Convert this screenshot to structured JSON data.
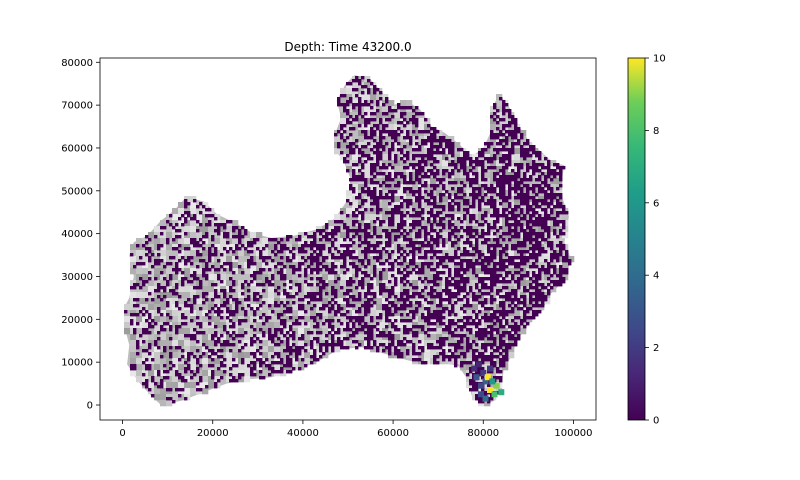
{
  "chart_data": {
    "type": "heatmap",
    "title": "Depth: Time 43200.0",
    "xlabel": "",
    "ylabel": "",
    "xlim": [
      -5000,
      105000
    ],
    "ylim": [
      -3500,
      81000
    ],
    "x_ticks": [
      0,
      20000,
      40000,
      60000,
      80000,
      100000
    ],
    "x_tick_labels": [
      "0",
      "20000",
      "40000",
      "60000",
      "80000",
      "100000"
    ],
    "y_ticks": [
      0,
      10000,
      20000,
      30000,
      40000,
      50000,
      60000,
      70000,
      80000
    ],
    "y_tick_labels": [
      "0",
      "10000",
      "20000",
      "30000",
      "40000",
      "50000",
      "60000",
      "70000",
      "80000"
    ],
    "colorbar": {
      "colormap": "viridis",
      "vmin": 0,
      "vmax": 10,
      "ticks": [
        0,
        2,
        4,
        6,
        8,
        10
      ],
      "tick_labels": [
        "0",
        "2",
        "4",
        "6",
        "8",
        "10"
      ]
    },
    "background": "grayscale elevation",
    "domain_outline": [
      [
        500,
        23000
      ],
      [
        1500,
        25000
      ],
      [
        2500,
        30000
      ],
      [
        1500,
        35000
      ],
      [
        2500,
        38000
      ],
      [
        5500,
        39500
      ],
      [
        8500,
        43000
      ],
      [
        11500,
        45500
      ],
      [
        14000,
        48500
      ],
      [
        18000,
        47500
      ],
      [
        21000,
        44500
      ],
      [
        25000,
        42500
      ],
      [
        29000,
        40000
      ],
      [
        33000,
        39000
      ],
      [
        38000,
        39500
      ],
      [
        43000,
        41000
      ],
      [
        47000,
        43500
      ],
      [
        50000,
        48000
      ],
      [
        50500,
        53000
      ],
      [
        49000,
        57000
      ],
      [
        47500,
        59000
      ],
      [
        47000,
        63000
      ],
      [
        48500,
        67000
      ],
      [
        47500,
        71000
      ],
      [
        49500,
        75000
      ],
      [
        51500,
        77000
      ],
      [
        55000,
        76000
      ],
      [
        57500,
        73000
      ],
      [
        60000,
        70000
      ],
      [
        63000,
        71000
      ],
      [
        66000,
        69000
      ],
      [
        68500,
        65000
      ],
      [
        71500,
        63500
      ],
      [
        74500,
        61000
      ],
      [
        77500,
        58000
      ],
      [
        80000,
        60000
      ],
      [
        82000,
        64500
      ],
      [
        81500,
        68500
      ],
      [
        83500,
        72500
      ],
      [
        85500,
        70000
      ],
      [
        88000,
        65000
      ],
      [
        90500,
        61000
      ],
      [
        93000,
        59000
      ],
      [
        95500,
        56500
      ],
      [
        98000,
        56000
      ],
      [
        97000,
        50000
      ],
      [
        99000,
        44000
      ],
      [
        98000,
        38000
      ],
      [
        99500,
        34000
      ],
      [
        98000,
        29000
      ],
      [
        95000,
        26000
      ],
      [
        93000,
        22000
      ],
      [
        90000,
        19000
      ],
      [
        87500,
        15000
      ],
      [
        86000,
        11000
      ],
      [
        84500,
        8000
      ],
      [
        84000,
        4000
      ],
      [
        82500,
        1000
      ],
      [
        80000,
        0
      ],
      [
        77500,
        2000
      ],
      [
        76500,
        6000
      ],
      [
        74500,
        9000
      ],
      [
        71000,
        10000
      ],
      [
        67000,
        9500
      ],
      [
        63000,
        10500
      ],
      [
        58000,
        12000
      ],
      [
        53000,
        13500
      ],
      [
        48000,
        13000
      ],
      [
        43000,
        10000
      ],
      [
        38000,
        8000
      ],
      [
        33000,
        6500
      ],
      [
        28000,
        6000
      ],
      [
        23000,
        5000
      ],
      [
        18000,
        3000
      ],
      [
        13000,
        1000
      ],
      [
        8500,
        0
      ],
      [
        6000,
        2500
      ],
      [
        3500,
        5500
      ],
      [
        1000,
        9500
      ],
      [
        1500,
        14000
      ],
      [
        500,
        18000
      ]
    ],
    "depth_cells": [
      {
        "x": 80500,
        "y": 5500,
        "value": 3.5
      },
      {
        "x": 81500,
        "y": 3500,
        "value": 10
      },
      {
        "x": 79500,
        "y": 4500,
        "value": 2.5
      },
      {
        "x": 82500,
        "y": 2500,
        "value": 8
      },
      {
        "x": 78500,
        "y": 6500,
        "value": 3
      },
      {
        "x": 80000,
        "y": 7500,
        "value": 2
      },
      {
        "x": 81000,
        "y": 6500,
        "value": 10
      },
      {
        "x": 83000,
        "y": 4500,
        "value": 9
      },
      {
        "x": 79500,
        "y": 2500,
        "value": 2.5
      },
      {
        "x": 82000,
        "y": 5500,
        "value": 6
      },
      {
        "x": 78000,
        "y": 8500,
        "value": 1.5
      },
      {
        "x": 84000,
        "y": 3000,
        "value": 7
      },
      {
        "x": 80500,
        "y": 1500,
        "value": 4
      },
      {
        "x": 79000,
        "y": 9500,
        "value": 1.2
      },
      {
        "x": 81500,
        "y": 8500,
        "value": 1.8
      }
    ]
  }
}
